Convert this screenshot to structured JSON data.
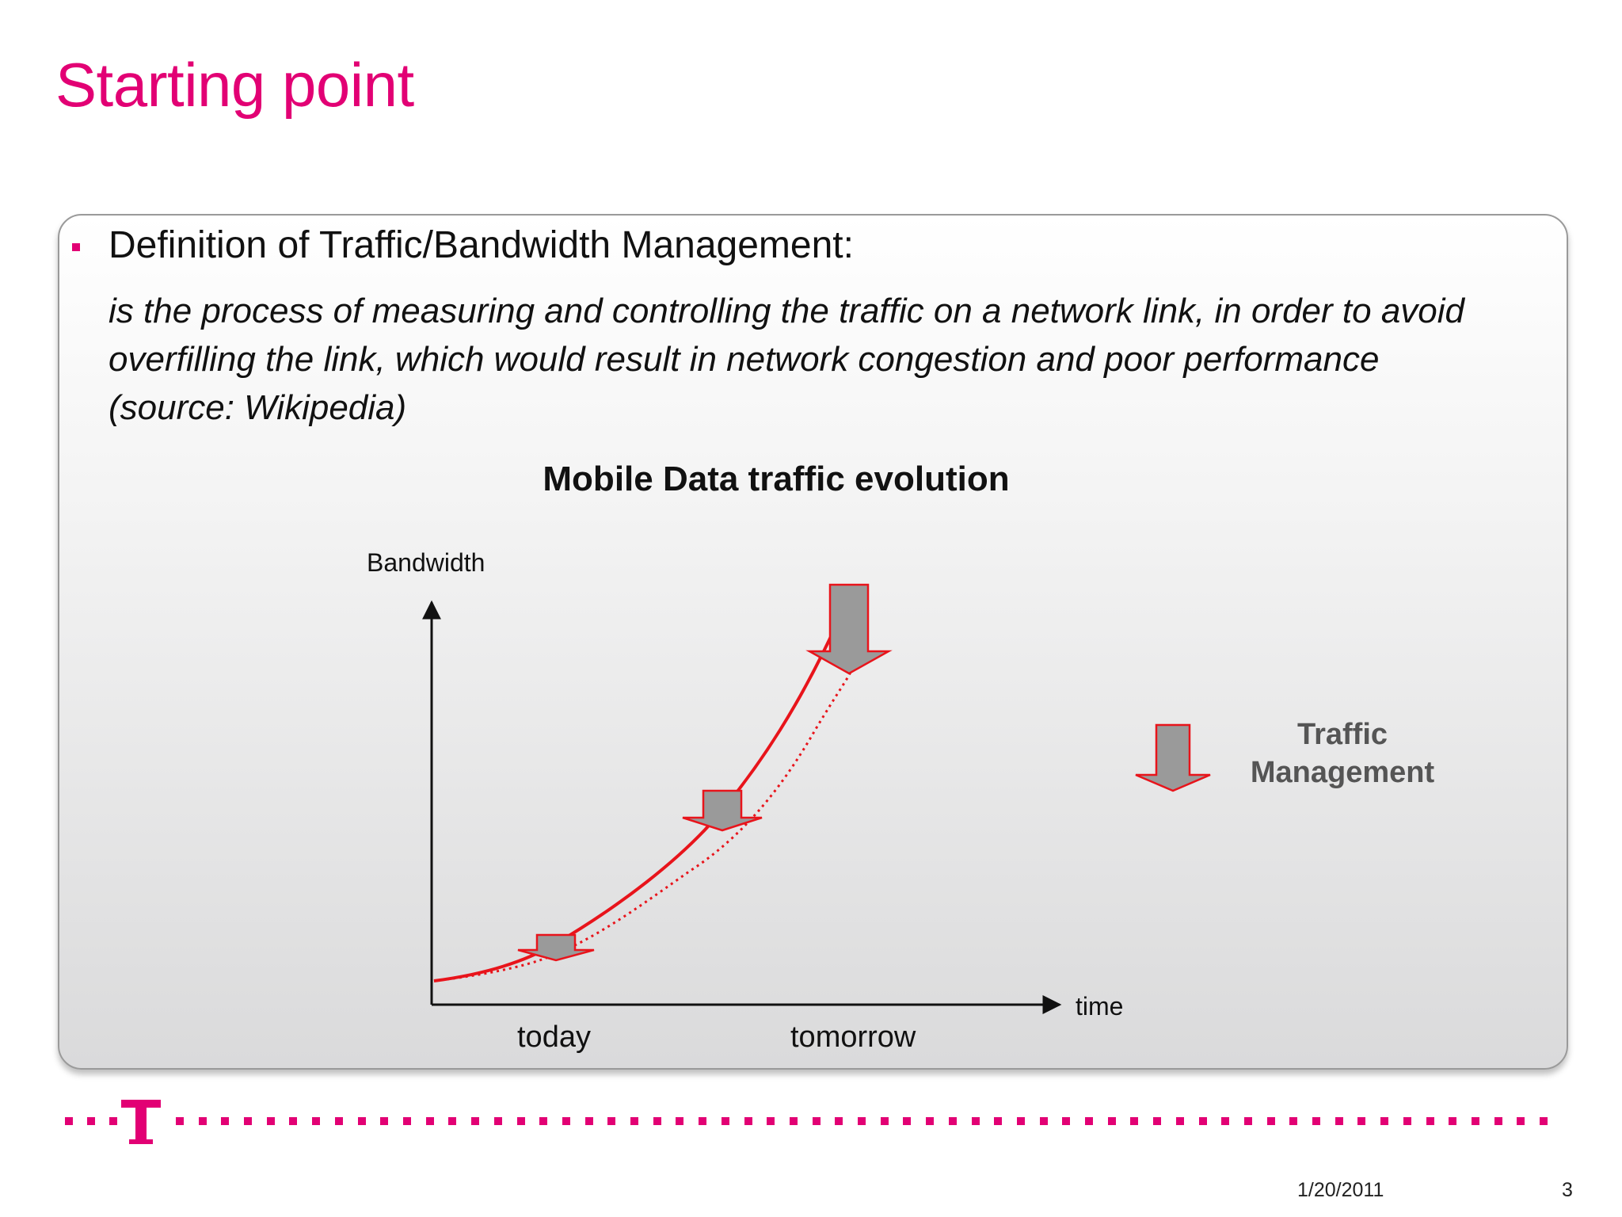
{
  "slide": {
    "title": "Starting point"
  },
  "definition": {
    "heading": "Definition of Traffic/Bandwidth Management:",
    "lines": [
      "is the process of measuring and controlling the traffic on a network link, in order to avoid",
      "overfilling the link, which would result in network congestion and poor performance",
      "(source: Wikipedia)"
    ]
  },
  "diagram": {
    "title": "Mobile Data traffic evolution",
    "y_axis_label": "Bandwidth",
    "x_axis_label": "time",
    "x_ticks": [
      "today",
      "tomorrow"
    ],
    "legend": {
      "line1": "Traffic",
      "line2": "Management"
    },
    "colors": {
      "curve": "#e8141b",
      "arrow_fill": "#9a9a9a",
      "arrow_stroke": "#e8141b",
      "axis": "#111111"
    }
  },
  "footer": {
    "date": "1/20/2011",
    "page_number": "3",
    "logo_letter": "T",
    "brand_color": "#e20074"
  }
}
